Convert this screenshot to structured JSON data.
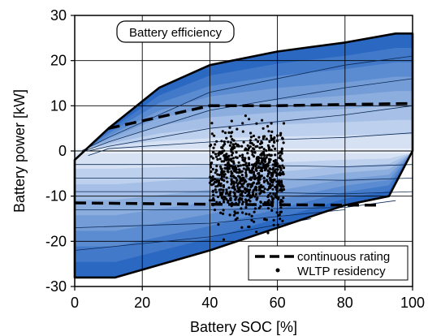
{
  "chart_data": {
    "type": "scatter",
    "title": "Battery efficiency",
    "xlabel": "Battery SOC [%]",
    "ylabel": "Battery power [kW]",
    "xlim": [
      0,
      100
    ],
    "ylim": [
      -30,
      30
    ],
    "xticks": [
      0,
      20,
      40,
      60,
      80,
      100
    ],
    "yticks": [
      -30,
      -20,
      -10,
      0,
      10,
      20,
      30
    ],
    "grid": true,
    "legend_position": "bottom-right",
    "colors": {
      "band_dark": "#2a68c2",
      "band_light": "#eef3fb",
      "edge": "#000000",
      "points": "#000000"
    },
    "envelope": {
      "upper": [
        [
          0,
          -2
        ],
        [
          10,
          5
        ],
        [
          25,
          14
        ],
        [
          40,
          19
        ],
        [
          60,
          22
        ],
        [
          80,
          24
        ],
        [
          95,
          26
        ],
        [
          100,
          26
        ]
      ],
      "lower": [
        [
          0,
          -28
        ],
        [
          12,
          -28
        ],
        [
          40,
          -22
        ],
        [
          60,
          -17
        ],
        [
          80,
          -12
        ],
        [
          93,
          -10
        ],
        [
          100,
          0
        ]
      ]
    },
    "efficiency_contours": [
      [
        [
          2,
          0
        ],
        [
          10,
          3
        ],
        [
          40,
          13
        ],
        [
          80,
          19
        ],
        [
          100,
          21
        ]
      ],
      [
        [
          3,
          0
        ],
        [
          10,
          2
        ],
        [
          40,
          9
        ],
        [
          80,
          14
        ],
        [
          100,
          16
        ]
      ],
      [
        [
          4,
          0
        ],
        [
          10,
          1
        ],
        [
          40,
          5
        ],
        [
          80,
          8
        ],
        [
          100,
          10
        ]
      ],
      [
        [
          4,
          -1
        ],
        [
          10,
          0.5
        ],
        [
          40,
          2
        ],
        [
          80,
          3
        ],
        [
          100,
          4
        ]
      ],
      [
        [
          0,
          -3
        ],
        [
          40,
          -3
        ],
        [
          80,
          -3.5
        ],
        [
          100,
          -3
        ]
      ],
      [
        [
          0,
          -6
        ],
        [
          40,
          -6
        ],
        [
          80,
          -6.5
        ],
        [
          100,
          -6
        ]
      ],
      [
        [
          0,
          -9
        ],
        [
          40,
          -9
        ],
        [
          80,
          -9.5
        ],
        [
          100,
          -9
        ]
      ],
      [
        [
          0,
          -13
        ],
        [
          40,
          -13
        ],
        [
          80,
          -12.5
        ],
        [
          95,
          -11
        ]
      ],
      [
        [
          0,
          -17
        ],
        [
          40,
          -16
        ],
        [
          80,
          -13
        ]
      ],
      [
        [
          0,
          -22
        ],
        [
          40,
          -19
        ],
        [
          70,
          -15
        ]
      ]
    ],
    "series": [
      {
        "name": "continuous rating",
        "kind": "dashed-line",
        "upper": [
          [
            10,
            5
          ],
          [
            40,
            10
          ],
          [
            60,
            10
          ],
          [
            80,
            10.3
          ],
          [
            100,
            10.5
          ]
        ],
        "lower": [
          [
            0,
            -11.5
          ],
          [
            40,
            -11.8
          ],
          [
            80,
            -12
          ],
          [
            90,
            -12
          ]
        ]
      },
      {
        "name": "WLTP residency",
        "kind": "points",
        "cluster": {
          "x_range": [
            40,
            62
          ],
          "y_range": [
            -21,
            9
          ],
          "center": [
            50,
            1
          ],
          "approx_count": 900
        }
      }
    ],
    "legend": [
      "continuous rating",
      "WLTP residency"
    ]
  }
}
